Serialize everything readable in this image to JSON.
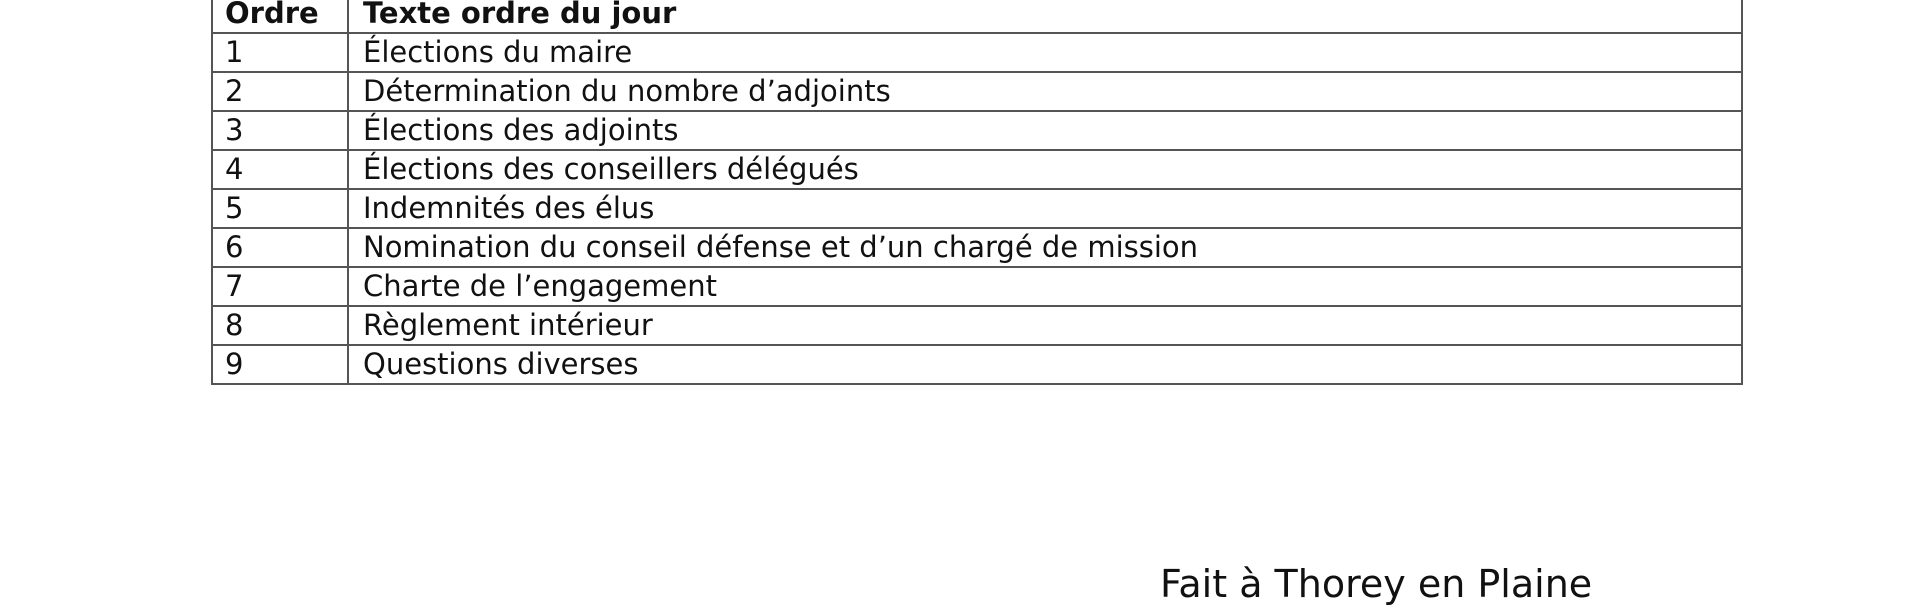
{
  "table": {
    "headers": [
      "Ordre",
      "Texte ordre du jour"
    ],
    "rows": [
      {
        "order": "1",
        "text": "Élections du maire"
      },
      {
        "order": "2",
        "text": "Détermination du nombre d’adjoints"
      },
      {
        "order": "3",
        "text": "Élections des adjoints"
      },
      {
        "order": "4",
        "text": "Élections des conseillers délégués"
      },
      {
        "order": "5",
        "text": "Indemnités des élus"
      },
      {
        "order": "6",
        "text": "Nomination du conseil défense et d’un chargé de mission"
      },
      {
        "order": "7",
        "text": "Charte de l’engagement"
      },
      {
        "order": "8",
        "text": "Règlement intérieur"
      },
      {
        "order": "9",
        "text": "Questions diverses"
      }
    ]
  },
  "footer": {
    "place": "Fait à Thorey en Plaine"
  }
}
